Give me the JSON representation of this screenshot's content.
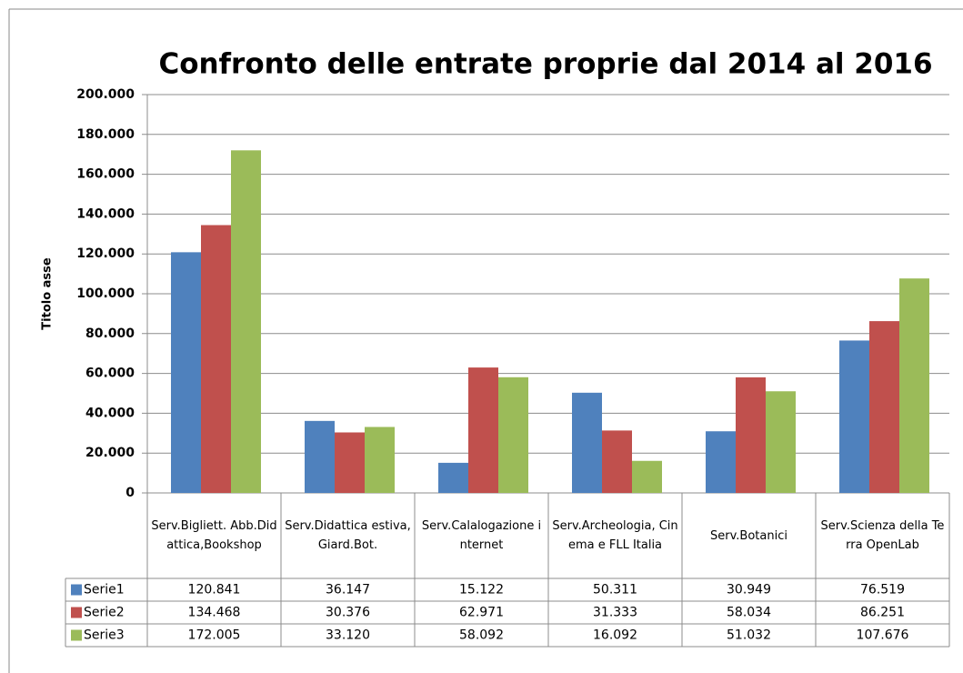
{
  "chart_data": {
    "type": "bar",
    "title": "Confronto delle entrate proprie dal 2014 al 2016",
    "y_label": "Titolo asse",
    "categories": [
      "Serv.Bigliett. Abb.Didattica,Bookshop",
      "Serv.Didattica estiva,Giard.Bot.",
      "Serv.Calalogazione internet",
      "Serv.Archeologia, Cinema e FLL Italia",
      "Serv.Botanici",
      "Serv.Scienza della Terra OpenLab"
    ],
    "series": [
      {
        "name": "Serie1",
        "color": "#4f81bd",
        "values": [
          120841,
          36147,
          15122,
          50311,
          30949,
          76519
        ],
        "value_labels": [
          "120.841",
          "36.147",
          "15.122",
          "50.311",
          "30.949",
          "76.519"
        ]
      },
      {
        "name": "Serie2",
        "color": "#c0504d",
        "values": [
          134468,
          30376,
          62971,
          31333,
          58034,
          86251
        ],
        "value_labels": [
          "134.468",
          "30.376",
          "62.971",
          "31.333",
          "58.034",
          "86.251"
        ]
      },
      {
        "name": "Serie3",
        "color": "#9bbb59",
        "values": [
          172005,
          33120,
          58092,
          16092,
          51032,
          107676
        ],
        "value_labels": [
          "172.005",
          "33.120",
          "58.092",
          "16.092",
          "51.032",
          "107.676"
        ]
      }
    ],
    "ylim": [
      0,
      200000
    ],
    "yticks": [
      0,
      {
        "value": 20000,
        "label": "20.000"
      },
      {
        "value": 40000,
        "label": "40.000"
      },
      {
        "value": 60000,
        "label": "60.000"
      },
      {
        "value": 80000,
        "label": "80.000"
      },
      {
        "value": 100000,
        "label": "100.000"
      },
      {
        "value": 120000,
        "label": "120.000"
      },
      {
        "value": 140000,
        "label": "140.000"
      },
      {
        "value": 160000,
        "label": "160.000"
      },
      {
        "value": 180000,
        "label": "180.000"
      },
      {
        "value": 200000,
        "label": "200.000"
      }
    ],
    "grid": true
  }
}
